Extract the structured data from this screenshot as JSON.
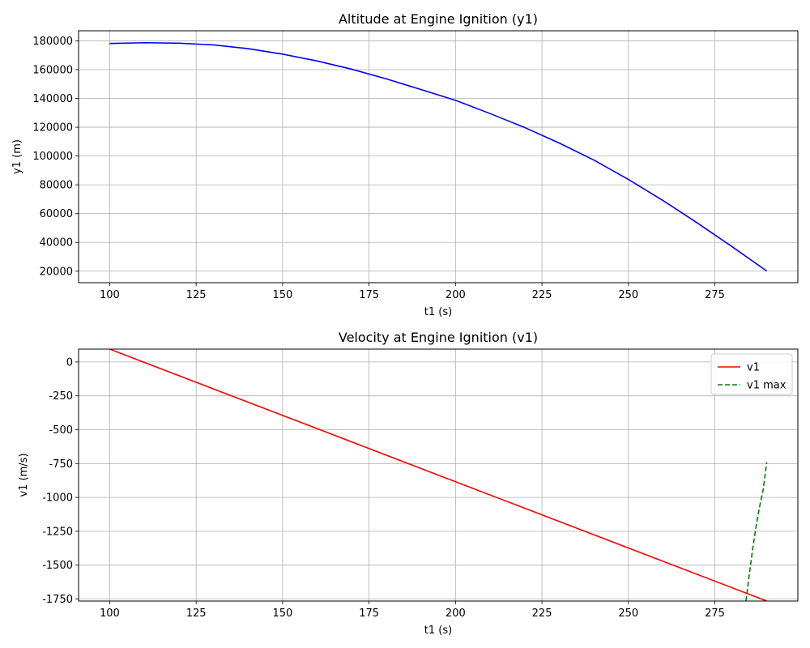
{
  "chart_data": [
    {
      "type": "line",
      "title": "Altitude at Engine Ignition (y1)",
      "xlabel": "t1 (s)",
      "ylabel": "y1 (m)",
      "xlim": [
        91,
        299
      ],
      "ylim": [
        12000,
        187000
      ],
      "xticks": [
        100,
        125,
        150,
        175,
        200,
        225,
        250,
        275
      ],
      "yticks": [
        20000,
        40000,
        60000,
        80000,
        100000,
        120000,
        140000,
        160000,
        180000
      ],
      "grid": true,
      "legend": null,
      "series": [
        {
          "color": "#0000ff",
          "style": "solid",
          "x": [
            100,
            110,
            120,
            130,
            140,
            150,
            160,
            170,
            180,
            190,
            200,
            210,
            220,
            230,
            240,
            250,
            260,
            270,
            280,
            290
          ],
          "y": [
            178200,
            178700,
            178400,
            177200,
            174600,
            170800,
            166000,
            160300,
            153600,
            146200,
            138700,
            129500,
            119800,
            109000,
            97200,
            83700,
            69100,
            53400,
            37000,
            20100
          ]
        }
      ]
    },
    {
      "type": "line",
      "title": "Velocity at Engine Ignition (v1)",
      "xlabel": "t1 (s)",
      "ylabel": "v1 (m/s)",
      "xlim": [
        91,
        299
      ],
      "ylim": [
        -1765,
        95
      ],
      "xticks": [
        100,
        125,
        150,
        175,
        200,
        225,
        250,
        275
      ],
      "yticks": [
        0,
        -250,
        -500,
        -750,
        -1000,
        -1250,
        -1500,
        -1750
      ],
      "grid": true,
      "legend": "top-right",
      "series": [
        {
          "name": "v1",
          "color": "#ff0000",
          "style": "solid",
          "x": [
            100,
            290
          ],
          "y": [
            95,
            -1765
          ]
        },
        {
          "name": "v1 max",
          "color": "#008000",
          "style": "dashed",
          "x": [
            284,
            285,
            286,
            287,
            288,
            289,
            290
          ],
          "y": [
            -1765,
            -1560,
            -1370,
            -1200,
            -1060,
            -940,
            -740
          ]
        }
      ]
    }
  ]
}
